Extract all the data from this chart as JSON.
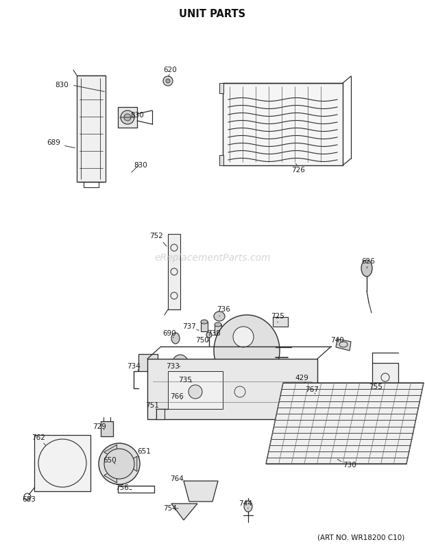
{
  "title": "UNIT PARTS",
  "footer": "(ART NO. WR18200 C10)",
  "watermark": "eReplacementParts.com",
  "bg": "#ffffff",
  "line_color": "#2a2a2a",
  "label_color": "#1a1a1a",
  "watermark_color": "#bbbbbb",
  "title_fontsize": 11,
  "label_fontsize": 7.5,
  "footer_fontsize": 7.5,
  "watermark_fontsize": 10
}
